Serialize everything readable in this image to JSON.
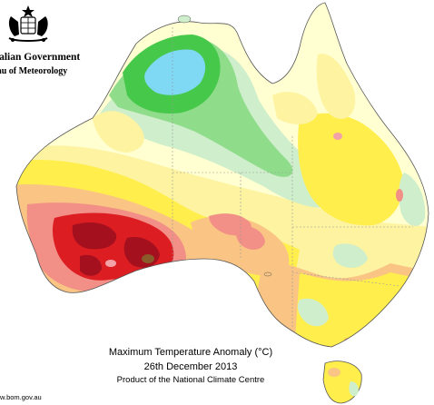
{
  "header": {
    "agency_line1": "ralian Government",
    "agency_line2": "reau of Meteorology",
    "crest_icon": "coat-of-arms-icon"
  },
  "caption": {
    "title": "Maximum Temperature Anomaly (°C)",
    "date": "26th December 2013",
    "producer": "Product of the National Climate Centre"
  },
  "footer": {
    "url": "w.bom.gov.au"
  },
  "map": {
    "region": "Australia",
    "palette": {
      "cyan": "#7fd8f4",
      "green_dark": "#46c84a",
      "green_mid": "#8fdc8a",
      "green_light": "#cfeecb",
      "cream": "#ffffd2",
      "yellow_light": "#fdf3a0",
      "yellow": "#ffee4c",
      "orange_light": "#f9c484",
      "salmon": "#f28f87",
      "red": "#dc1e23",
      "red_dark": "#a4101e",
      "brown": "#8b5a2a",
      "pink": "#f3a3a8",
      "ocean": "#ffffff"
    }
  }
}
